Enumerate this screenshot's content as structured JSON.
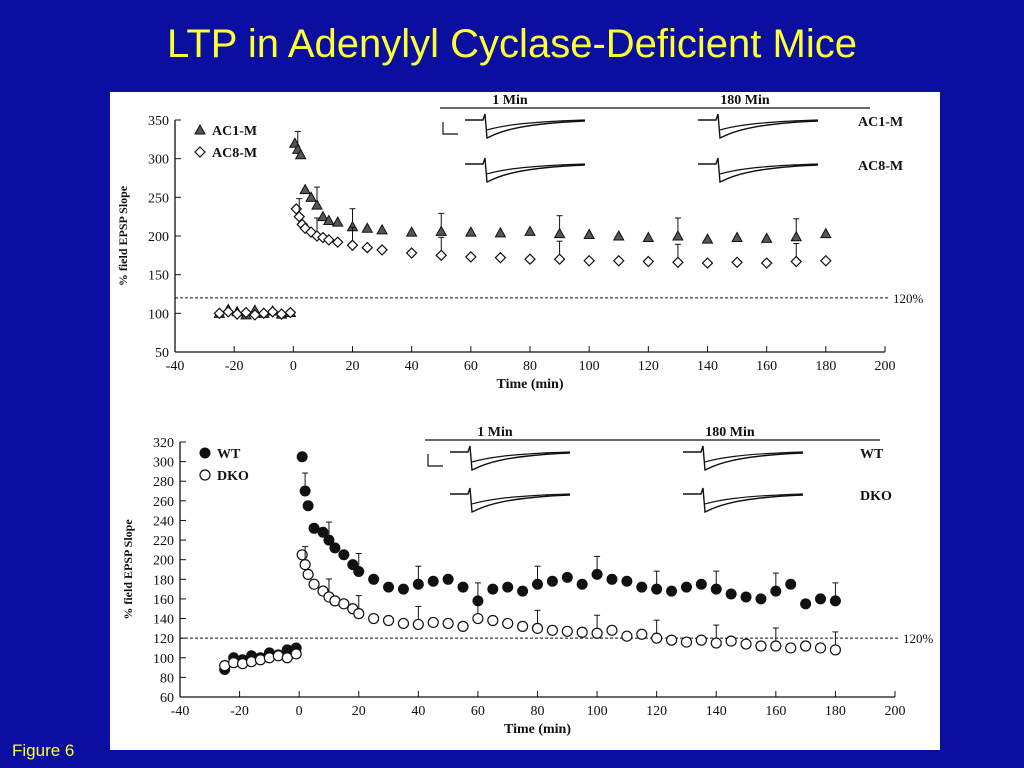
{
  "slide": {
    "title": "LTP in Adenylyl Cyclase-Deficient Mice",
    "caption": "Figure 6",
    "background_color": "#0a0fa0",
    "title_color": "#ffff33"
  },
  "chart_data": [
    {
      "type": "scatter",
      "title": "",
      "xlabel": "Time (min)",
      "ylabel": "% field EPSP Slope",
      "xlim": [
        -40,
        200
      ],
      "ylim": [
        50,
        350
      ],
      "xticks": [
        -40,
        -20,
        0,
        20,
        40,
        60,
        80,
        100,
        120,
        140,
        160,
        180,
        200
      ],
      "yticks": [
        50,
        100,
        150,
        200,
        250,
        300,
        350
      ],
      "grid": false,
      "legend": "top-left",
      "reference_line": {
        "y": 120,
        "label": "120%"
      },
      "inset": {
        "headers": [
          "1 Min",
          "180 Min"
        ],
        "rows": [
          "AC1-M",
          "AC8-M"
        ]
      },
      "series": [
        {
          "name": "AC1-M",
          "marker": "filled-triangle",
          "x": [
            -25,
            -22,
            -19,
            -16,
            -13,
            -10,
            -7,
            -4,
            -1,
            0.5,
            1.5,
            2.5,
            4,
            6,
            8,
            10,
            12,
            15,
            20,
            25,
            30,
            40,
            50,
            60,
            70,
            80,
            90,
            100,
            110,
            120,
            130,
            140,
            150,
            160,
            170,
            180
          ],
          "y": [
            100,
            105,
            102,
            98,
            104,
            100,
            103,
            99,
            101,
            320,
            312,
            305,
            260,
            250,
            240,
            225,
            220,
            218,
            212,
            210,
            208,
            205,
            206,
            205,
            204,
            206,
            203,
            202,
            200,
            198,
            200,
            196,
            198,
            197,
            199,
            203
          ]
        },
        {
          "name": "AC8-M",
          "marker": "open-diamond",
          "x": [
            -25,
            -22,
            -19,
            -16,
            -13,
            -10,
            -7,
            -4,
            -1,
            1,
            2,
            3,
            4,
            6,
            8,
            10,
            12,
            15,
            20,
            25,
            30,
            40,
            50,
            60,
            70,
            80,
            90,
            100,
            110,
            120,
            130,
            140,
            150,
            160,
            170,
            180
          ],
          "y": [
            100,
            102,
            99,
            101,
            98,
            100,
            102,
            99,
            101,
            235,
            225,
            215,
            210,
            205,
            200,
            198,
            195,
            192,
            188,
            185,
            182,
            178,
            175,
            173,
            172,
            170,
            170,
            168,
            168,
            167,
            166,
            165,
            166,
            165,
            167,
            168
          ]
        }
      ]
    },
    {
      "type": "scatter",
      "title": "",
      "xlabel": "Time (min)",
      "ylabel": "% field EPSP Slope",
      "xlim": [
        -40,
        200
      ],
      "ylim": [
        60,
        320
      ],
      "xticks": [
        -40,
        -20,
        0,
        20,
        40,
        60,
        80,
        100,
        120,
        140,
        160,
        180,
        200
      ],
      "yticks": [
        60,
        80,
        100,
        120,
        140,
        160,
        180,
        200,
        220,
        240,
        260,
        280,
        300,
        320
      ],
      "grid": false,
      "legend": "top-left",
      "reference_line": {
        "y": 120,
        "label": "120%"
      },
      "inset": {
        "headers": [
          "1 Min",
          "180 Min"
        ],
        "rows": [
          "WT",
          "DKO"
        ]
      },
      "series": [
        {
          "name": "WT",
          "marker": "filled-circle",
          "x": [
            -25,
            -22,
            -19,
            -16,
            -13,
            -10,
            -7,
            -4,
            -1,
            1,
            2,
            3,
            5,
            8,
            10,
            12,
            15,
            18,
            20,
            25,
            30,
            35,
            40,
            45,
            50,
            55,
            60,
            65,
            70,
            75,
            80,
            85,
            90,
            95,
            100,
            105,
            110,
            115,
            120,
            125,
            130,
            135,
            140,
            145,
            150,
            155,
            160,
            165,
            170,
            175,
            180
          ],
          "y": [
            88,
            100,
            98,
            102,
            100,
            105,
            103,
            108,
            110,
            305,
            270,
            255,
            232,
            228,
            220,
            212,
            205,
            195,
            188,
            180,
            172,
            170,
            175,
            178,
            180,
            172,
            158,
            170,
            172,
            168,
            175,
            178,
            182,
            175,
            185,
            180,
            178,
            172,
            170,
            168,
            172,
            175,
            170,
            165,
            162,
            160,
            168,
            175,
            155,
            160,
            158
          ]
        },
        {
          "name": "DKO",
          "marker": "open-circle",
          "x": [
            -25,
            -22,
            -19,
            -16,
            -13,
            -10,
            -7,
            -4,
            -1,
            1,
            2,
            3,
            5,
            8,
            10,
            12,
            15,
            18,
            20,
            25,
            30,
            35,
            40,
            45,
            50,
            55,
            60,
            65,
            70,
            75,
            80,
            85,
            90,
            95,
            100,
            105,
            110,
            115,
            120,
            125,
            130,
            135,
            140,
            145,
            150,
            155,
            160,
            165,
            170,
            175,
            180
          ],
          "y": [
            92,
            95,
            94,
            96,
            98,
            100,
            102,
            100,
            104,
            205,
            195,
            185,
            175,
            168,
            162,
            158,
            155,
            150,
            145,
            140,
            138,
            135,
            134,
            136,
            135,
            132,
            140,
            138,
            135,
            132,
            130,
            128,
            127,
            126,
            125,
            128,
            122,
            124,
            120,
            118,
            116,
            118,
            115,
            117,
            114,
            112,
            112,
            110,
            112,
            110,
            108
          ]
        }
      ]
    }
  ]
}
